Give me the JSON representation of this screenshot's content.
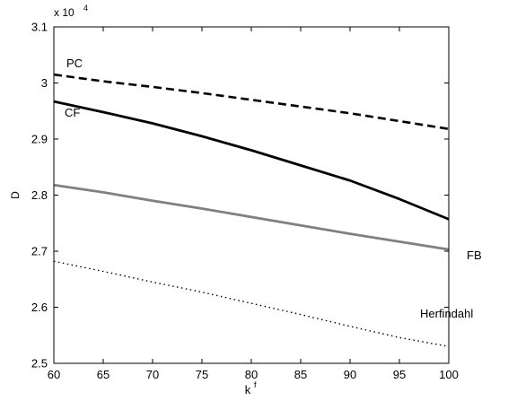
{
  "chart_data": {
    "type": "line",
    "xlabel": "k",
    "xlabel_superscript": "f",
    "ylabel": "D",
    "y_multiplier": "x 10",
    "y_multiplier_exponent": "4",
    "xlim": [
      60,
      100
    ],
    "ylim": [
      2.5,
      3.1
    ],
    "x_ticks": [
      60,
      65,
      70,
      75,
      80,
      85,
      90,
      95,
      100
    ],
    "x_tick_labels": [
      "60",
      "65",
      "70",
      "75",
      "80",
      "85",
      "90",
      "95",
      "100"
    ],
    "y_ticks": [
      2.5,
      2.6,
      2.7,
      2.8,
      2.9,
      3.0,
      3.1
    ],
    "y_tick_labels": [
      "2.5",
      "2.6",
      "2.7",
      "2.8",
      "2.9",
      "3",
      "3.1"
    ],
    "grid": false,
    "series": [
      {
        "name": "PC",
        "color": "#000000",
        "style": "dashed",
        "x": [
          60,
          65,
          70,
          75,
          80,
          85,
          90,
          95,
          100
        ],
        "y": [
          3.015,
          3.003,
          2.993,
          2.982,
          2.97,
          2.958,
          2.946,
          2.932,
          2.918
        ]
      },
      {
        "name": "CF",
        "color": "#000000",
        "style": "solid",
        "x": [
          60,
          65,
          70,
          75,
          80,
          85,
          90,
          95,
          100
        ],
        "y": [
          2.967,
          2.948,
          2.928,
          2.905,
          2.88,
          2.853,
          2.826,
          2.793,
          2.757
        ]
      },
      {
        "name": "FB",
        "color": "#808080",
        "style": "solid",
        "x": [
          60,
          65,
          70,
          75,
          80,
          85,
          90,
          95,
          100
        ],
        "y": [
          2.818,
          2.805,
          2.79,
          2.776,
          2.761,
          2.746,
          2.731,
          2.717,
          2.703
        ]
      },
      {
        "name": "Herfindahl",
        "color": "#000000",
        "style": "dotted",
        "x": [
          60,
          65,
          70,
          75,
          80,
          85,
          90,
          95,
          100
        ],
        "y": [
          2.682,
          2.664,
          2.645,
          2.627,
          2.607,
          2.587,
          2.566,
          2.546,
          2.53
        ]
      }
    ]
  }
}
